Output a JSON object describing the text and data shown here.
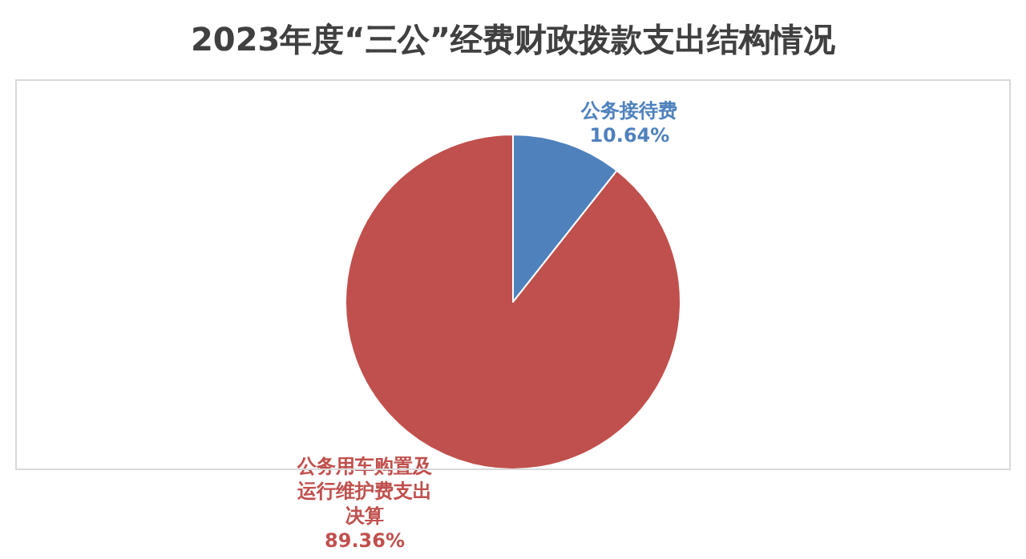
{
  "chart_data": {
    "type": "pie",
    "title": "2023年度“三公”经费财政拨款支出结构情况",
    "categories": [
      "公务接待费",
      "公务用车购置及运行维护费支出决算"
    ],
    "values": [
      10.64,
      89.36
    ],
    "colors": [
      "#4f81bd",
      "#c0504d"
    ],
    "value_labels": [
      "10.64%",
      "89.36%"
    ],
    "legend": false
  }
}
